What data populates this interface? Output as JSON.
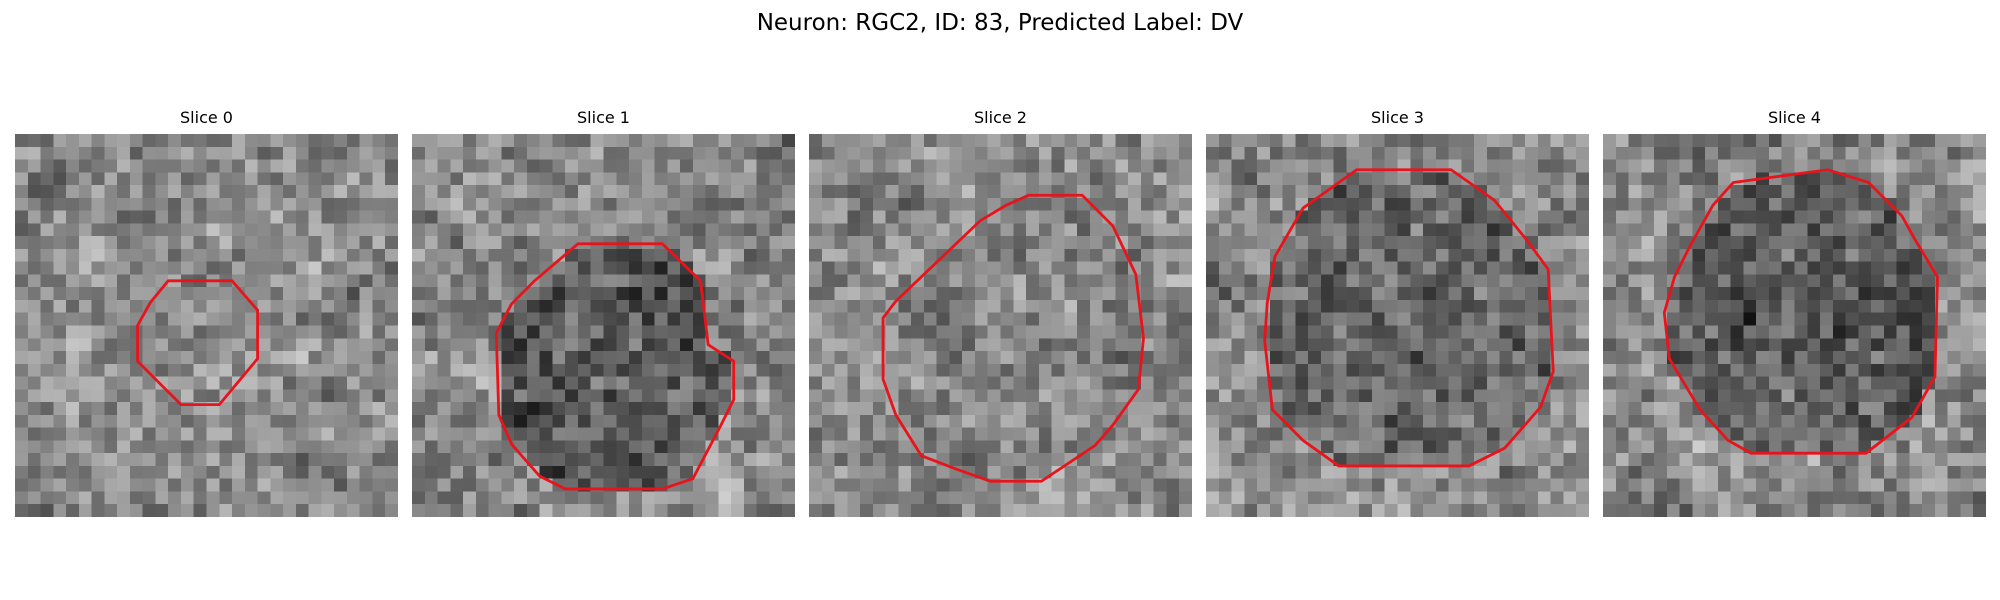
{
  "figure": {
    "title": "Neuron: RGC2, ID: 83, Predicted Label: DV"
  },
  "colors": {
    "contour": "#e8141c",
    "background": "#ffffff"
  },
  "panels": [
    {
      "title": "Slice 0",
      "image_content": "grayscale microscopy slice with a small red cell outline in the center",
      "seed": 11,
      "dark_inside": 0.0
    },
    {
      "title": "Slice 1",
      "image_content": "grayscale microscopy slice with a larger red cell outline, darker region inside lower right",
      "seed": 23,
      "dark_inside": 0.35
    },
    {
      "title": "Slice 2",
      "image_content": "grayscale microscopy slice with a large red cell outline, lighter interior",
      "seed": 37,
      "dark_inside": 0.05
    },
    {
      "title": "Slice 3",
      "image_content": "grayscale microscopy slice with a large red cell outline, dark ring at the bottom",
      "seed": 51,
      "dark_inside": 0.25
    },
    {
      "title": "Slice 4",
      "image_content": "grayscale microscopy slice with a large red cell outline, darker interior",
      "seed": 67,
      "dark_inside": 0.3
    }
  ]
}
